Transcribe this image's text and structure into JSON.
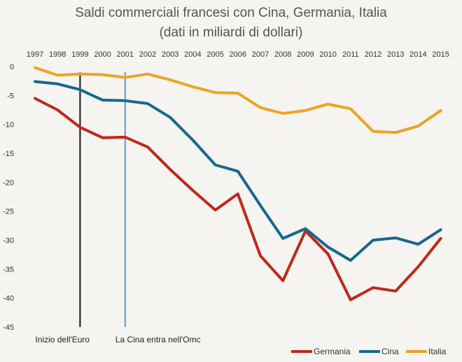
{
  "chart_data": {
    "type": "line",
    "title": "Saldi commerciali francesi con Cina, Germania, Italia",
    "subtitle": "(dati in miliardi di dollari)",
    "x": [
      "1997",
      "1998",
      "1999",
      "2000",
      "2001",
      "2002",
      "2003",
      "2004",
      "2005",
      "2006",
      "2007",
      "2008",
      "2009",
      "2010",
      "2011",
      "2012",
      "2013",
      "2014",
      "2015"
    ],
    "ylim": [
      -45,
      0
    ],
    "yticks": [
      0,
      -5,
      -10,
      -15,
      -20,
      -25,
      -30,
      -35,
      -40,
      -45
    ],
    "grid": false,
    "legend_position": "bottom-right",
    "series": [
      {
        "name": "Germania",
        "color": "#c0281b",
        "values": [
          -5.5,
          -7.5,
          -10.5,
          -12.3,
          -12.2,
          -13.9,
          -17.8,
          -21.4,
          -24.8,
          -22.0,
          -32.7,
          -37.0,
          -28.4,
          -32.4,
          -40.3,
          -38.2,
          -38.8,
          -34.6,
          -29.7
        ]
      },
      {
        "name": "Cina",
        "color": "#17688f",
        "values": [
          -2.6,
          -3.0,
          -4.0,
          -5.8,
          -5.9,
          -6.4,
          -8.8,
          -12.7,
          -17.0,
          -18.1,
          -24.0,
          -29.7,
          -28.0,
          -31.2,
          -33.5,
          -30.0,
          -29.6,
          -30.7,
          -28.2
        ]
      },
      {
        "name": "Italia",
        "color": "#eaa424",
        "values": [
          -0.2,
          -1.5,
          -1.3,
          -1.4,
          -1.9,
          -1.3,
          -2.3,
          -3.5,
          -4.5,
          -4.6,
          -7.1,
          -8.1,
          -7.6,
          -6.5,
          -7.3,
          -11.2,
          -11.4,
          -10.3,
          -7.6
        ]
      }
    ],
    "annotations": [
      {
        "label": "Inizio dell'Euro",
        "x": "1999",
        "color": "#111111"
      },
      {
        "label": "La Cina entra nell'Omc",
        "x": "2001",
        "color": "#5b9bd5"
      }
    ]
  }
}
